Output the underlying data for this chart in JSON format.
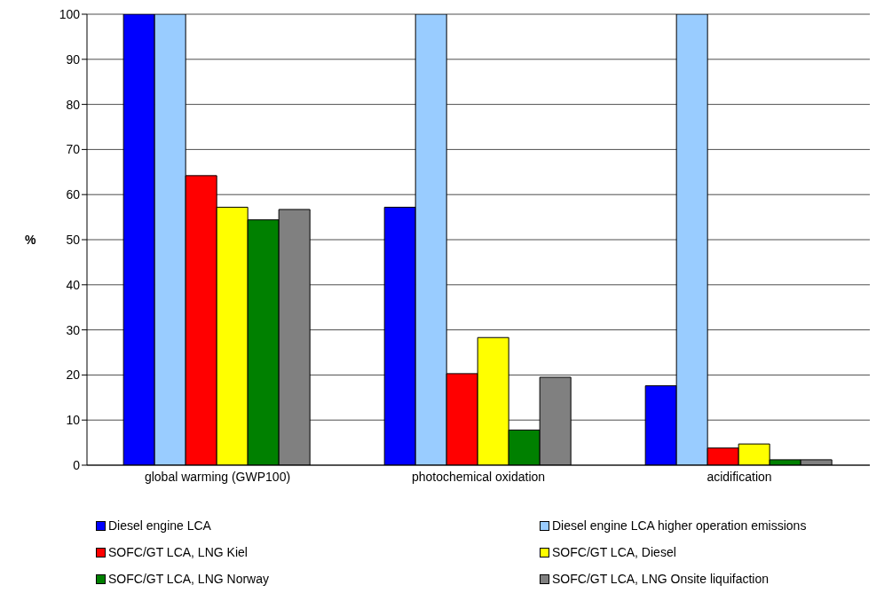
{
  "chart_data": {
    "type": "bar",
    "ylabel": "%",
    "categories": [
      "global warming (GWP100)",
      "photochemical oxidation",
      "acidification"
    ],
    "series": [
      {
        "name": "Diesel engine LCA",
        "color": "#0000ff",
        "values": [
          100,
          57.2,
          17.6
        ]
      },
      {
        "name": "Diesel engine LCA higher operation emissions",
        "color": "#99ccff",
        "values": [
          100,
          100,
          100
        ]
      },
      {
        "name": "SOFC/GT LCA, LNG Kiel",
        "color": "#ff0000",
        "values": [
          64.2,
          20.3,
          3.8
        ]
      },
      {
        "name": "SOFC/GT LCA, Diesel",
        "color": "#ffff00",
        "values": [
          57.2,
          28.3,
          4.7
        ]
      },
      {
        "name": "SOFC/GT LCA, LNG Norway",
        "color": "#008000",
        "values": [
          54.4,
          7.8,
          1.2
        ]
      },
      {
        "name": "SOFC/GT LCA, LNG Onsite liquifaction",
        "color": "#808080",
        "values": [
          56.7,
          19.5,
          1.2
        ]
      }
    ],
    "ylim": [
      0,
      100
    ],
    "yticks": [
      0,
      10,
      20,
      30,
      40,
      50,
      60,
      70,
      80,
      90,
      100
    ],
    "grid": "y",
    "legend": "bottom"
  }
}
